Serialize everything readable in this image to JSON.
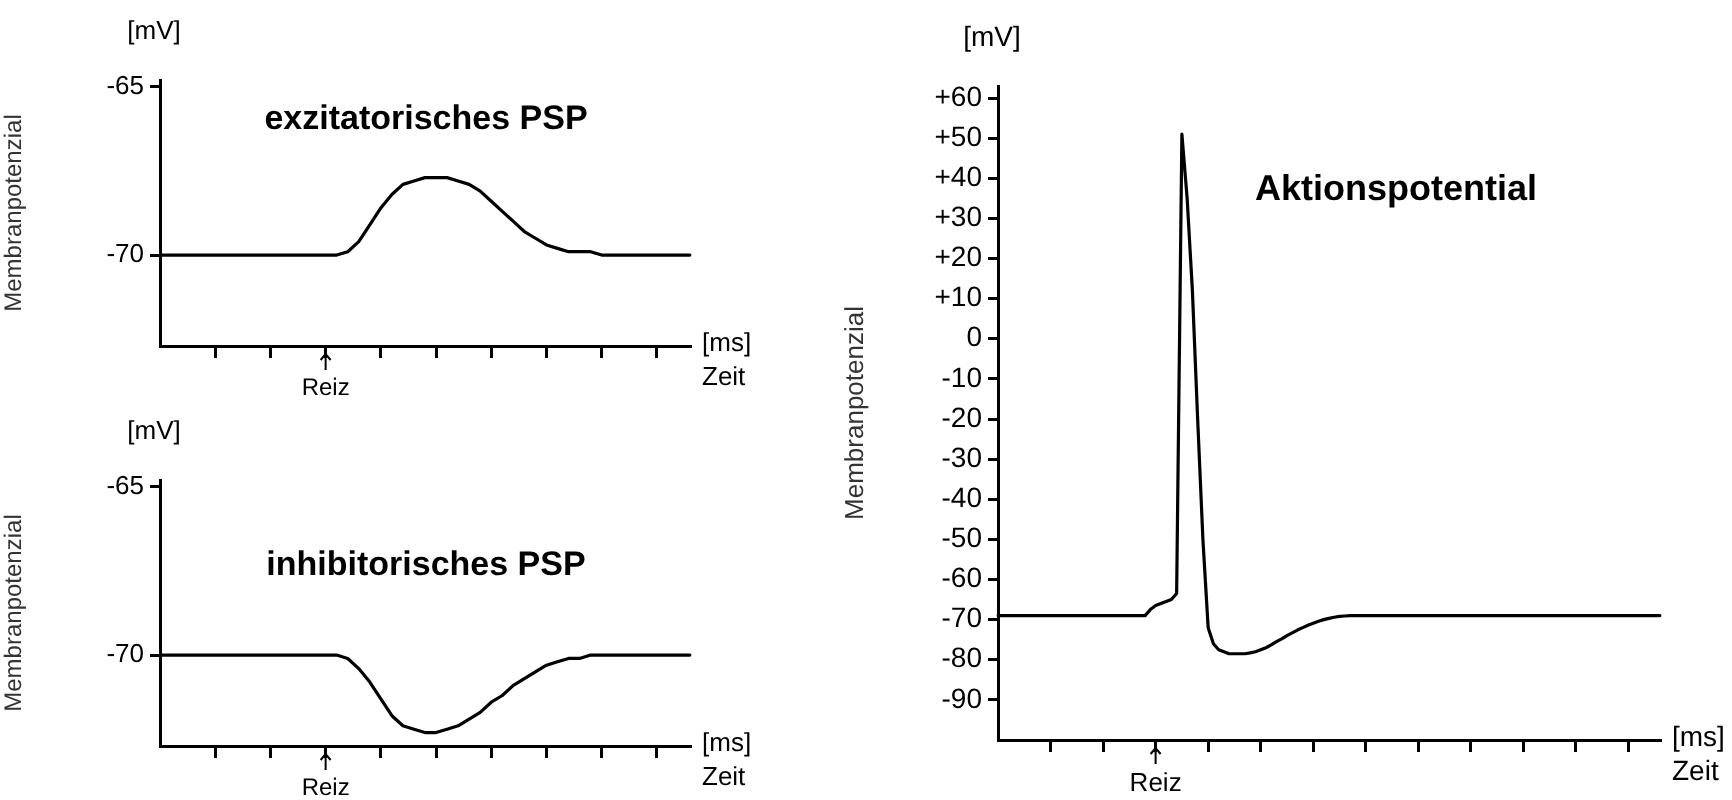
{
  "chart_data": [
    {
      "type": "line",
      "title": "exzitatorisches PSP",
      "xlabel": "Zeit",
      "ylabel": "Membranpotenzial",
      "annotations": [
        "[mV]",
        "[ms]"
      ],
      "categories": [
        null,
        null,
        null,
        null,
        null,
        null,
        null,
        null,
        null,
        null,
        null,
        null,
        null,
        null,
        null,
        "Reiz",
        null,
        null,
        null,
        null,
        null,
        null,
        null,
        null,
        null,
        null,
        null,
        null,
        null,
        null,
        null,
        null,
        null,
        null,
        null,
        null,
        null,
        null,
        null,
        null,
        null,
        null,
        null,
        null,
        null,
        null,
        null,
        null,
        null
      ],
      "series": [
        {
          "color": "#000000",
          "values": [
            -70,
            -70,
            -70,
            -70,
            -70,
            -70,
            -70,
            -70,
            -70,
            -70,
            -70,
            -70,
            -70,
            -70,
            -70,
            -70,
            -70,
            -69.9,
            -69.6,
            -69.1,
            -68.6,
            -68.2,
            -67.9,
            -67.8,
            -67.7,
            -67.7,
            -67.7,
            -67.8,
            -67.9,
            -68.1,
            -68.4,
            -68.7,
            -69,
            -69.3,
            -69.5,
            -69.7,
            -69.8,
            -69.9,
            -69.9,
            -69.9,
            -70,
            -70,
            -70,
            -70,
            -70,
            -70,
            -70,
            -70,
            -70
          ]
        }
      ],
      "ylim": [
        -72.7,
        -64.8
      ],
      "yticks": [
        -65,
        -70
      ],
      "grid": false,
      "legend": false,
      "marker": "none"
    },
    {
      "type": "line",
      "title": "inhibitorisches PSP",
      "xlabel": "Zeit",
      "ylabel": "Membranpotenzial",
      "annotations": [
        "[mV]",
        "[ms]"
      ],
      "categories": [
        null,
        null,
        null,
        null,
        null,
        null,
        null,
        null,
        null,
        null,
        null,
        null,
        null,
        null,
        null,
        "Reiz",
        null,
        null,
        null,
        null,
        null,
        null,
        null,
        null,
        null,
        null,
        null,
        null,
        null,
        null,
        null,
        null,
        null,
        null,
        null,
        null,
        null,
        null,
        null,
        null,
        null,
        null,
        null,
        null,
        null,
        null,
        null,
        null,
        null
      ],
      "series": [
        {
          "color": "#000000",
          "values": [
            -70,
            -70,
            -70,
            -70,
            -70,
            -70,
            -70,
            -70,
            -70,
            -70,
            -70,
            -70,
            -70,
            -70,
            -70,
            -70,
            -70,
            -70.1,
            -70.4,
            -70.8,
            -71.3,
            -71.8,
            -72.1,
            -72.2,
            -72.3,
            -72.3,
            -72.2,
            -72.1,
            -71.9,
            -71.7,
            -71.4,
            -71.2,
            -70.9,
            -70.7,
            -70.5,
            -70.3,
            -70.2,
            -70.1,
            -70.1,
            -70,
            -70,
            -70,
            -70,
            -70,
            -70,
            -70,
            -70,
            -70,
            -70
          ]
        }
      ],
      "ylim": [
        -72.7,
        -64.8
      ],
      "yticks": [
        -65,
        -70
      ],
      "grid": false,
      "legend": false,
      "marker": "none"
    },
    {
      "type": "line",
      "title": "Aktionspotential",
      "xlabel": "Zeit",
      "ylabel": "Membranpotenzial",
      "annotations": [
        "[mV]",
        "[ms]"
      ],
      "categories": [
        null,
        null,
        null,
        null,
        null,
        null,
        null,
        null,
        null,
        null,
        null,
        null,
        null,
        null,
        null,
        null,
        null,
        null,
        null,
        null,
        null,
        null,
        null,
        null,
        null,
        null,
        null,
        null,
        null,
        null,
        "Reiz",
        null,
        null,
        null,
        null,
        null,
        null,
        null,
        null,
        null,
        null,
        null,
        null,
        null,
        null,
        null,
        null,
        null,
        null,
        null,
        null,
        null,
        null,
        null,
        null,
        null,
        null,
        null,
        null,
        null,
        null,
        null,
        null,
        null,
        null,
        null,
        null,
        null,
        null,
        null,
        null,
        null,
        null,
        null,
        null,
        null,
        null,
        null,
        null,
        null,
        null,
        null,
        null,
        null,
        null,
        null,
        null,
        null,
        null,
        null,
        null,
        null,
        null,
        null,
        null,
        null,
        null,
        null,
        null,
        null,
        null,
        null,
        null,
        null,
        null,
        null,
        null,
        null,
        null,
        null,
        null,
        null,
        null,
        null,
        null,
        null,
        null,
        null,
        null,
        null,
        null,
        null,
        null,
        null,
        null,
        null,
        null
      ],
      "series": [
        {
          "color": "#000000",
          "values": [
            -69,
            -69,
            -69,
            -69,
            -69,
            -69,
            -69,
            -69,
            -69,
            -69,
            -69,
            -69,
            -69,
            -69,
            -69,
            -69,
            -69,
            -69,
            -69,
            -69,
            -69,
            -69,
            -69,
            -69,
            -69,
            -69,
            -69,
            -69,
            -69,
            -67.5,
            -66.5,
            -66,
            -65.5,
            -65,
            -63.5,
            51,
            35,
            12,
            -20,
            -50,
            -72,
            -76,
            -77.5,
            -78,
            -78.5,
            -78.5,
            -78.5,
            -78.5,
            -78.3,
            -78,
            -77.5,
            -77,
            -76.3,
            -75.5,
            -74.8,
            -74,
            -73.3,
            -72.6,
            -72,
            -71.4,
            -70.9,
            -70.4,
            -70,
            -69.7,
            -69.4,
            -69.2,
            -69.1,
            -69,
            -69,
            -69,
            -69,
            -69,
            -69,
            -69,
            -69,
            -69,
            -69,
            -69,
            -69,
            -69,
            -69,
            -69,
            -69,
            -69,
            -69,
            -69,
            -69,
            -69,
            -69,
            -69,
            -69,
            -69,
            -69,
            -69,
            -69,
            -69,
            -69,
            -69,
            -69,
            -69,
            -69,
            -69,
            -69,
            -69,
            -69,
            -69,
            -69,
            -69,
            -69,
            -69,
            -69,
            -69,
            -69,
            -69,
            -69,
            -69,
            -69,
            -69,
            -69,
            -69,
            -69,
            -69,
            -69,
            -69,
            -69,
            -69,
            -69
          ]
        }
      ],
      "ylim": [
        -100,
        63
      ],
      "yticks": [
        {
          "value": 60,
          "label": "+60"
        },
        {
          "value": 50,
          "label": "+50"
        },
        {
          "value": 40,
          "label": "+40"
        },
        {
          "value": 30,
          "label": "+30"
        },
        {
          "value": 20,
          "label": "+20"
        },
        {
          "value": 10,
          "label": "+10"
        },
        0,
        -10,
        -20,
        -30,
        -40,
        -50,
        -60,
        -70,
        -80,
        -90
      ],
      "grid": false,
      "legend": false,
      "marker": "none"
    }
  ]
}
